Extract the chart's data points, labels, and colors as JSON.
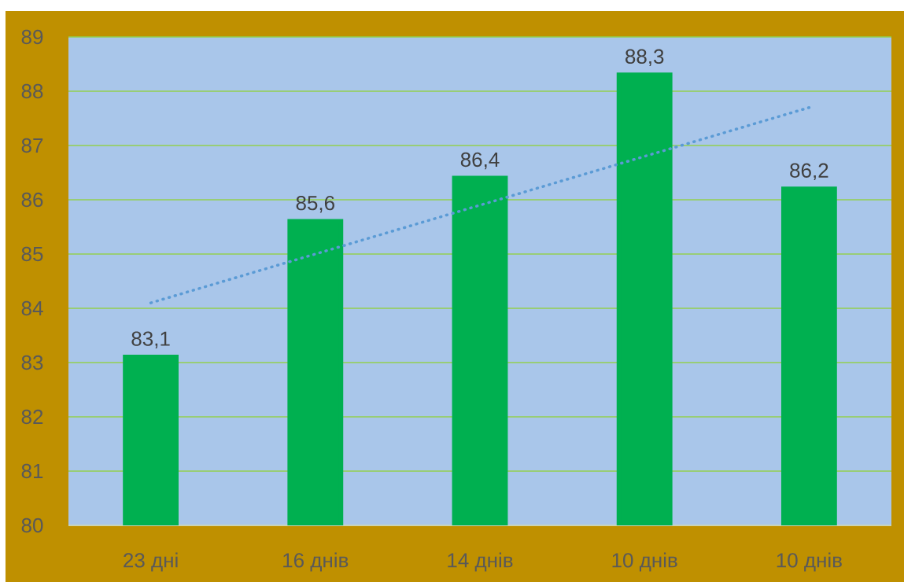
{
  "chart_data": {
    "type": "bar",
    "categories": [
      "23 дні",
      "16 днів",
      "14 днів",
      "10 днів",
      "10 днів"
    ],
    "series": [
      {
        "color": "#00b050",
        "values": [
          83.1,
          85.6,
          86.4,
          88.3,
          86.2
        ],
        "value_labels": [
          "83,1",
          "85,6",
          "86,4",
          "88,3",
          "86,2"
        ]
      },
      {
        "type": "line",
        "color": "#5b9bd5",
        "line_style": "dotted",
        "values": [
          84.1,
          85.0,
          85.9,
          86.8,
          87.7
        ]
      }
    ],
    "ylim": [
      80,
      89
    ],
    "yticks": [
      80,
      81,
      82,
      83,
      84,
      85,
      86,
      87,
      88,
      89
    ],
    "grid": "y"
  }
}
